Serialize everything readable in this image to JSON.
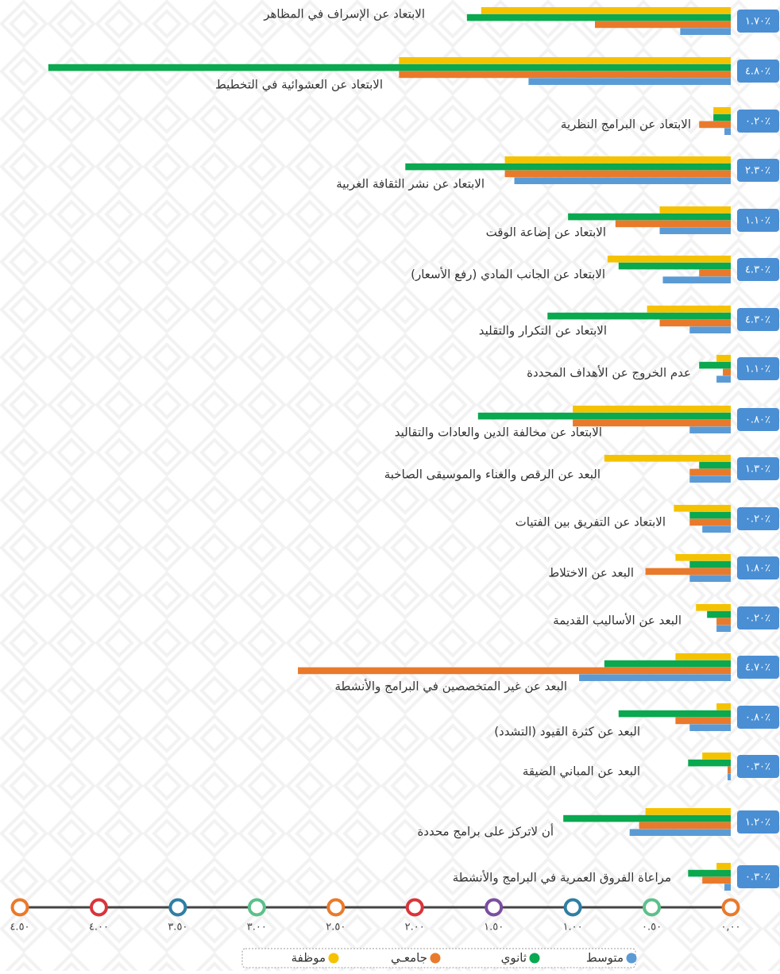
{
  "chart_data": {
    "type": "barh",
    "categories": [
      "الابتعاد عن الإسراف في المظاهر",
      "الابتعاد عن العشوائية في التخطيط",
      "الابتعاد عن البرامج النظرية",
      "الابتعاد عن نشر الثقافة الغربية",
      "الابتعاد عن إضاعة الوقت",
      "الابتعاد عن الجانب المادي (رفع الأسعار)",
      "الابتعاد عن التكرار والتقليد",
      "عدم الخروج عن الأهداف المحددة",
      "الابتعاد عن مخالفة الدين والعادات والتقاليد",
      "البعد عن الرقص والغناء والموسيقى الصاخبة",
      "الابتعاد عن التفريق بين الفتيات",
      "البعد عن الاختلاط",
      "البعد عن الأساليب القديمة",
      "البعد عن غير المتخصصين في البرامج والأنشطة",
      "البعد عن كثرة القيود (التشدد)",
      "البعد عن المباني الضيقة",
      "أن لاتركز على برامج محددة",
      "مراعاة الفروق العمرية في البرامج والأنشطة"
    ],
    "badges": [
      "٪١.٧٠",
      "٪٤.٨٠",
      "٪٠.٢٠",
      "٪٢.٣٠",
      "٪١.١٠",
      "٪٤.٣٠",
      "٪٤.٣٠",
      "٪١.١٠",
      "٪٠.٨٠",
      "٪١.٣٠",
      "٪٠.٢٠",
      "٪١.٨٠",
      "٪٠.٢٠",
      "٪٤.٧٠",
      "٪٠.٨٠",
      "٪٠.٣٠",
      "٪١.٢٠",
      "٪٠.٣٠"
    ],
    "series": [
      {
        "name": "متوسط",
        "color": "#5b9bd5",
        "values": [
          0.32,
          1.28,
          0.04,
          1.37,
          0.45,
          0.43,
          0.26,
          0.09,
          0.26,
          0.26,
          0.18,
          0.26,
          0.09,
          0.96,
          0.26,
          0.02,
          0.64,
          0.04
        ]
      },
      {
        "name": "ثانوي",
        "color": "#0aa84f",
        "values": [
          1.67,
          4.32,
          0.11,
          2.06,
          1.03,
          0.71,
          1.16,
          0.2,
          1.6,
          0.2,
          0.26,
          0.26,
          0.15,
          0.8,
          0.71,
          0.27,
          1.06,
          0.27
        ]
      },
      {
        "name": "جامعـي",
        "color": "#e97a2b",
        "values": [
          0.86,
          2.1,
          0.2,
          1.43,
          0.73,
          0.2,
          0.45,
          0.05,
          1.0,
          0.26,
          0.26,
          0.54,
          0.09,
          2.74,
          0.35,
          0.02,
          0.58,
          0.18
        ]
      },
      {
        "name": "موظفة",
        "color": "#f5c200",
        "values": [
          1.58,
          2.1,
          0.11,
          1.43,
          0.45,
          0.78,
          0.53,
          0.09,
          1.0,
          0.8,
          0.36,
          0.35,
          0.22,
          0.35,
          0.09,
          0.18,
          0.54,
          0.09
        ]
      }
    ],
    "xlim": [
      0,
      4.5
    ],
    "xticks": [
      {
        "value": 0,
        "label": "٠,٠٠"
      },
      {
        "value": 0.5,
        "label": "٠.٥٠"
      },
      {
        "value": 1,
        "label": "١.٠٠"
      },
      {
        "value": 1.5,
        "label": "١.٥٠"
      },
      {
        "value": 2,
        "label": "٢.٠٠"
      },
      {
        "value": 2.5,
        "label": "٢.٥٠"
      },
      {
        "value": 3,
        "label": "٣.٠٠"
      },
      {
        "value": 3.5,
        "label": "٣.٥٠"
      },
      {
        "value": 4,
        "label": "٤.٠٠"
      },
      {
        "value": 4.5,
        "label": "٤.٥٠"
      }
    ],
    "xtick_colors": [
      "#e97a2b",
      "#5cc08a",
      "#2e7fa3",
      "#7a4ea0",
      "#d9343b",
      "#e97a2b",
      "#5cc08a",
      "#2e7fa3",
      "#d9343b",
      "#e97a2b"
    ],
    "x_reversed": true,
    "badge_color": "#4a8fd4"
  }
}
